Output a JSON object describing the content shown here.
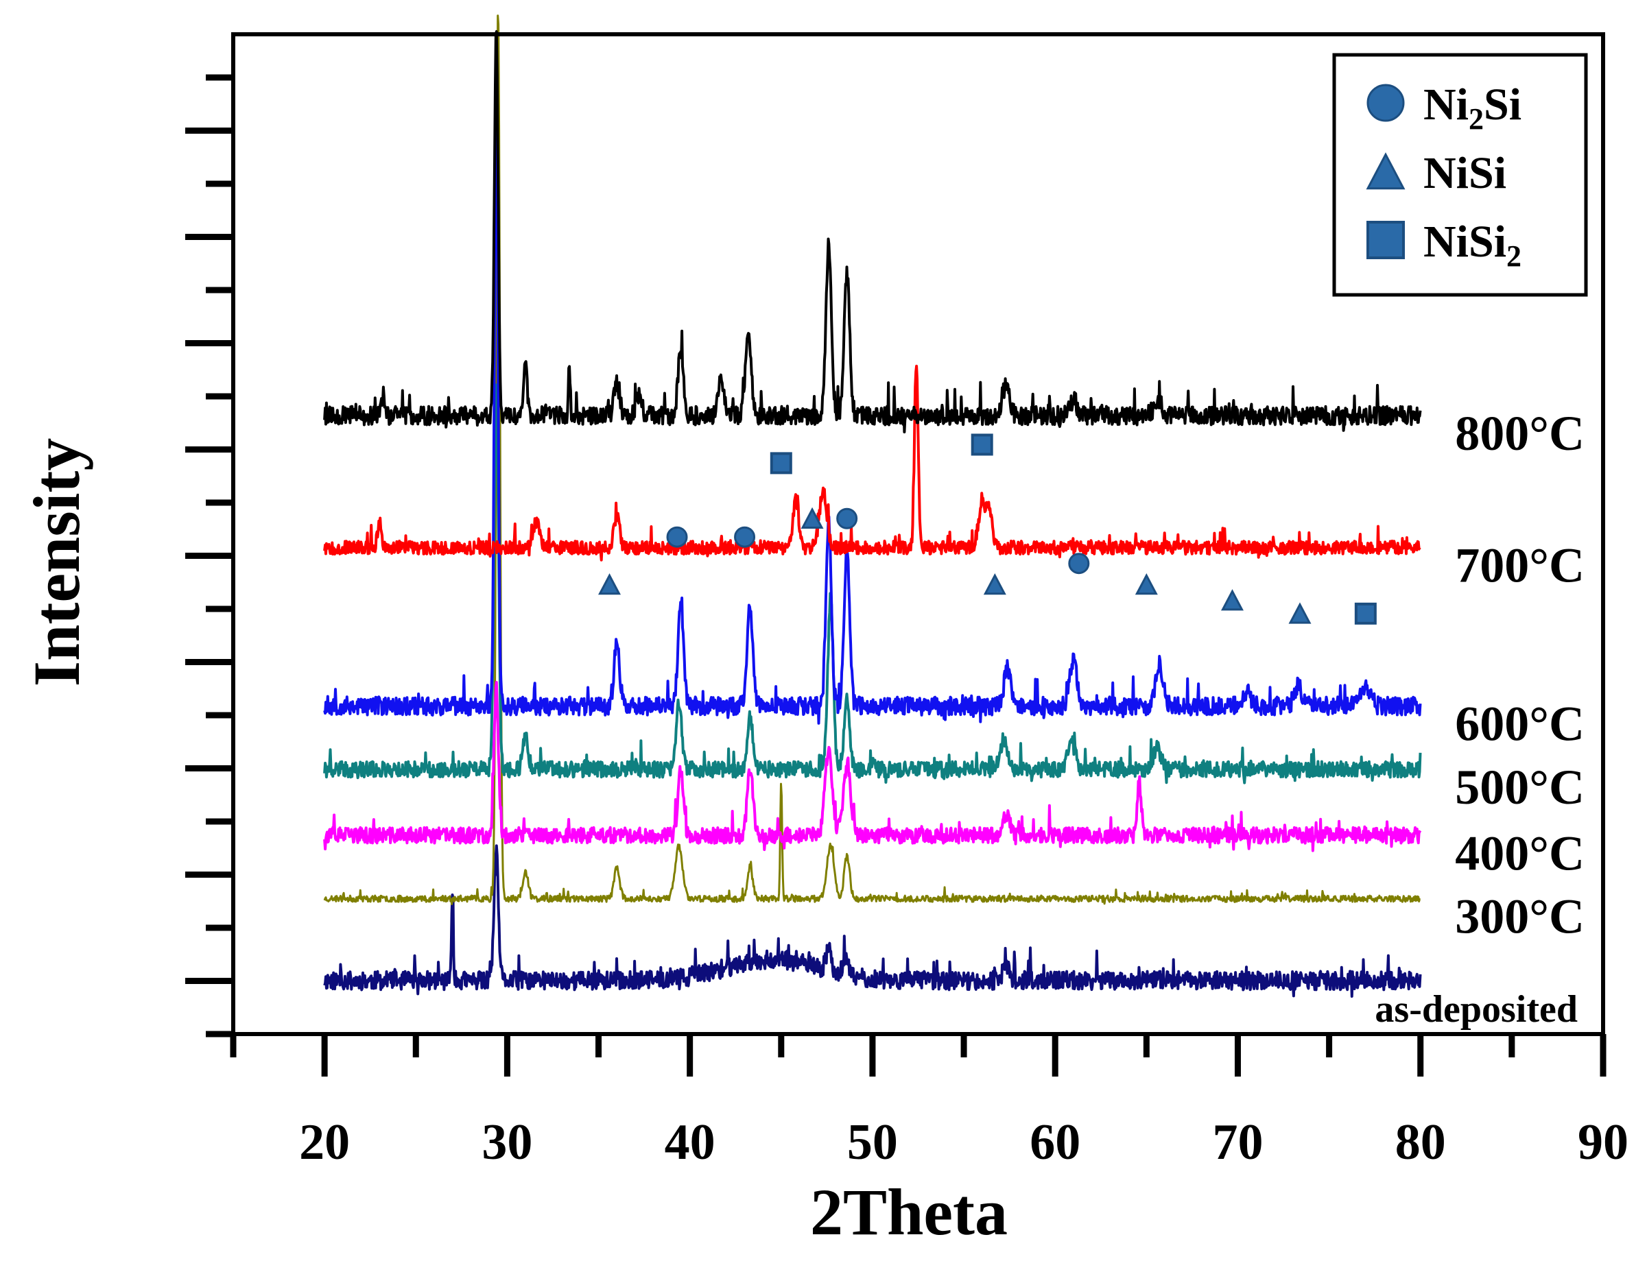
{
  "chart_data": {
    "type": "line",
    "title": "",
    "xlabel": "2Theta",
    "ylabel": "Intensity",
    "xlim": [
      15,
      90
    ],
    "x_ticks": [
      "20",
      "30",
      "40",
      "50",
      "60",
      "70",
      "80",
      "90"
    ],
    "y_ticks_labeled": false,
    "grid": false,
    "legend": {
      "position": "top-right",
      "entries": [
        {
          "marker": "circle",
          "label": "Ni",
          "sub": "2",
          "rest": "Si"
        },
        {
          "marker": "triangle",
          "label": "NiSi",
          "sub": "",
          "rest": ""
        },
        {
          "marker": "square",
          "label": "NiSi",
          "sub": "2",
          "rest": ""
        }
      ]
    },
    "marker_color": "#2a6aa8",
    "series": [
      {
        "name": "as-deposited",
        "color": "#0d0d7a",
        "baseline": 0.0,
        "noise": 0.35,
        "jitter": 3,
        "seed": 11,
        "peaks": [
          [
            27.0,
            1.7,
            0.05
          ],
          [
            29.4,
            2.4,
            0.12
          ],
          [
            44.5,
            0.4,
            2.5
          ],
          [
            47.6,
            0.4,
            0.15
          ],
          [
            48.5,
            0.3,
            0.15
          ],
          [
            57.3,
            0.3,
            0.15
          ]
        ]
      },
      {
        "name": "300°C",
        "color": "#7f7f00",
        "baseline": 1.55,
        "noise": 0.12,
        "jitter": 1,
        "seed": 23,
        "peaks": [
          [
            29.5,
            16.9,
            0.1
          ],
          [
            31.0,
            0.5,
            0.15
          ],
          [
            36.0,
            0.6,
            0.15
          ],
          [
            39.4,
            1.0,
            0.2
          ],
          [
            43.3,
            0.6,
            0.15
          ],
          [
            45.0,
            2.2,
            0.05
          ],
          [
            47.7,
            1.0,
            0.2
          ],
          [
            48.6,
            0.8,
            0.15
          ]
        ]
      },
      {
        "name": "400°C",
        "color": "#ff00ff",
        "baseline": 2.75,
        "noise": 0.3,
        "jitter": 3,
        "seed": 37,
        "peaks": [
          [
            29.4,
            2.8,
            0.12
          ],
          [
            39.5,
            1.2,
            0.15
          ],
          [
            43.3,
            1.3,
            0.15
          ],
          [
            47.6,
            1.6,
            0.2
          ],
          [
            48.6,
            1.3,
            0.2
          ],
          [
            57.3,
            0.4,
            0.2
          ],
          [
            64.6,
            1.0,
            0.1
          ]
        ]
      },
      {
        "name": "500°C",
        "color": "#0f8080",
        "baseline": 4.0,
        "noise": 0.3,
        "jitter": 3,
        "seed": 41,
        "peaks": [
          [
            29.4,
            7.2,
            0.12
          ],
          [
            31.0,
            0.6,
            0.15
          ],
          [
            39.4,
            1.3,
            0.15
          ],
          [
            43.3,
            1.0,
            0.15
          ],
          [
            47.7,
            3.2,
            0.15
          ],
          [
            48.6,
            1.4,
            0.15
          ],
          [
            57.2,
            0.6,
            0.2
          ],
          [
            60.9,
            0.5,
            0.2
          ],
          [
            65.6,
            0.4,
            0.2
          ]
        ]
      },
      {
        "name": "600°C",
        "color": "#1111f0",
        "baseline": 5.2,
        "noise": 0.35,
        "jitter": 3,
        "seed": 53,
        "peaks": [
          [
            29.4,
            11.2,
            0.1
          ],
          [
            36.0,
            1.2,
            0.15
          ],
          [
            39.5,
            2.0,
            0.15
          ],
          [
            43.3,
            1.9,
            0.15
          ],
          [
            47.6,
            3.4,
            0.15
          ],
          [
            48.6,
            2.9,
            0.15
          ],
          [
            57.4,
            0.7,
            0.2
          ],
          [
            61.0,
            0.9,
            0.2
          ],
          [
            65.7,
            0.8,
            0.2
          ],
          [
            70.5,
            0.3,
            0.2
          ],
          [
            73.3,
            0.4,
            0.2
          ],
          [
            77.0,
            0.4,
            0.25
          ]
        ]
      },
      {
        "name": "700°C",
        "color": "#ff0000",
        "baseline": 8.2,
        "noise": 0.25,
        "jitter": 3,
        "seed": 67,
        "peaks": [
          [
            23.0,
            0.5,
            0.1
          ],
          [
            31.6,
            0.5,
            0.15
          ],
          [
            36.0,
            0.6,
            0.15
          ],
          [
            45.8,
            0.9,
            0.15
          ],
          [
            47.3,
            1.1,
            0.2
          ],
          [
            52.4,
            3.5,
            0.1
          ],
          [
            56.0,
            0.8,
            0.2
          ],
          [
            56.4,
            0.7,
            0.15
          ]
        ]
      },
      {
        "name": "800°C",
        "color": "#000000",
        "baseline": 10.7,
        "noise": 0.35,
        "jitter": 3,
        "seed": 79,
        "peaks": [
          [
            23.2,
            0.4,
            0.1
          ],
          [
            29.4,
            7.2,
            0.1
          ],
          [
            31.0,
            0.9,
            0.1
          ],
          [
            33.4,
            1.0,
            0.05
          ],
          [
            36.0,
            0.6,
            0.15
          ],
          [
            37.2,
            0.4,
            0.15
          ],
          [
            39.5,
            1.2,
            0.15
          ],
          [
            41.7,
            0.8,
            0.15
          ],
          [
            43.2,
            1.6,
            0.15
          ],
          [
            47.6,
            3.2,
            0.15
          ],
          [
            48.6,
            2.7,
            0.15
          ],
          [
            57.3,
            0.6,
            0.2
          ],
          [
            61.0,
            0.3,
            0.2
          ],
          [
            65.6,
            0.3,
            0.2
          ]
        ]
      }
    ],
    "phase_markers": [
      {
        "shape": "square",
        "x": 45.0,
        "y": 9.8
      },
      {
        "shape": "square",
        "x": 56.0,
        "y": 10.15
      },
      {
        "shape": "triangle",
        "x": 46.7,
        "y": 8.75
      },
      {
        "shape": "circle",
        "x": 48.6,
        "y": 8.75
      },
      {
        "shape": "circle",
        "x": 39.3,
        "y": 8.4
      },
      {
        "shape": "circle",
        "x": 43.0,
        "y": 8.4
      },
      {
        "shape": "triangle",
        "x": 35.6,
        "y": 7.5
      },
      {
        "shape": "triangle",
        "x": 56.7,
        "y": 7.5
      },
      {
        "shape": "circle",
        "x": 61.3,
        "y": 7.9
      },
      {
        "shape": "triangle",
        "x": 65.0,
        "y": 7.5
      },
      {
        "shape": "triangle",
        "x": 69.7,
        "y": 7.2
      },
      {
        "shape": "triangle",
        "x": 73.4,
        "y": 6.95
      },
      {
        "shape": "square",
        "x": 77.0,
        "y": 6.95
      }
    ]
  }
}
